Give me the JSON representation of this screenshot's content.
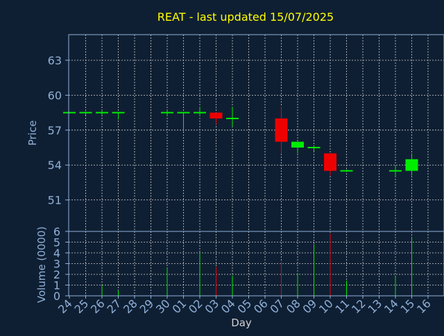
{
  "colors": {
    "background": "#0f1f33",
    "title": "#ffff00",
    "axis_text": "#8fb0d8",
    "frame": "#8fb0d8",
    "grid": "#d0d0d0",
    "up": "#00ee00",
    "down": "#ee0000",
    "neutral": "#00ee00"
  },
  "chart_data": {
    "type": "candlestick",
    "title": "REAT - last updated 15/07/2025",
    "xlabel": "Day",
    "price_panel": {
      "ylabel": "Price",
      "ylim": [
        48.3,
        65.2
      ],
      "yticks": [
        51,
        54,
        57,
        60,
        63
      ]
    },
    "volume_panel": {
      "ylabel": "Volume (0000)",
      "ylim": [
        0,
        6
      ],
      "yticks": [
        0,
        1,
        2,
        3,
        4,
        5,
        6
      ]
    },
    "grid": true,
    "x_ticks": [
      "24",
      "25",
      "26",
      "27",
      "28",
      "29",
      "30",
      "01",
      "02",
      "03",
      "04",
      "05",
      "06",
      "07",
      "08",
      "09",
      "10",
      "11",
      "12",
      "13",
      "14",
      "15",
      "16"
    ],
    "candles": [
      {
        "x": "24",
        "open": 58.5,
        "high": 58.5,
        "low": 58.5,
        "close": 58.5,
        "volume": 0.05
      },
      {
        "x": "25",
        "open": 58.5,
        "high": 58.6,
        "low": 58.3,
        "close": 58.5,
        "volume": 0.1
      },
      {
        "x": "26",
        "open": 58.5,
        "high": 58.7,
        "low": 58.3,
        "close": 58.5,
        "volume": 1.0
      },
      {
        "x": "27",
        "open": 58.5,
        "high": 58.5,
        "low": 57.9,
        "close": 58.5,
        "volume": 0.5
      },
      {
        "x": "30",
        "open": 58.5,
        "high": 58.7,
        "low": 58.2,
        "close": 58.5,
        "volume": 2.6
      },
      {
        "x": "01",
        "open": 58.5,
        "high": 58.5,
        "low": 56.9,
        "close": 58.5,
        "volume": 0.1
      },
      {
        "x": "02",
        "open": 58.5,
        "high": 59.0,
        "low": 58.2,
        "close": 58.5,
        "volume": 4.0
      },
      {
        "x": "03",
        "open": 58.5,
        "high": 58.5,
        "low": 57.5,
        "close": 58.0,
        "volume": 2.7
      },
      {
        "x": "04",
        "open": 58.0,
        "high": 59.0,
        "low": 57.3,
        "close": 58.0,
        "volume": 1.9
      },
      {
        "x": "07",
        "open": 58.0,
        "high": 59.0,
        "low": 55.0,
        "close": 56.0,
        "volume": 3.2
      },
      {
        "x": "08",
        "open": 55.5,
        "high": 56.0,
        "low": 55.0,
        "close": 56.0,
        "volume": 2.1
      },
      {
        "x": "09",
        "open": 55.5,
        "high": 55.7,
        "low": 55.2,
        "close": 55.5,
        "volume": 4.8
      },
      {
        "x": "10",
        "open": 55.0,
        "high": 55.0,
        "low": 53.1,
        "close": 53.5,
        "volume": 5.8
      },
      {
        "x": "11",
        "open": 53.5,
        "high": 53.6,
        "low": 53.4,
        "close": 53.5,
        "volume": 1.4
      },
      {
        "x": "14",
        "open": 53.5,
        "high": 54.0,
        "low": 53.0,
        "close": 53.5,
        "volume": 1.8
      },
      {
        "x": "15",
        "open": 53.5,
        "high": 55.0,
        "low": 53.1,
        "close": 54.5,
        "volume": 5.5
      }
    ]
  }
}
